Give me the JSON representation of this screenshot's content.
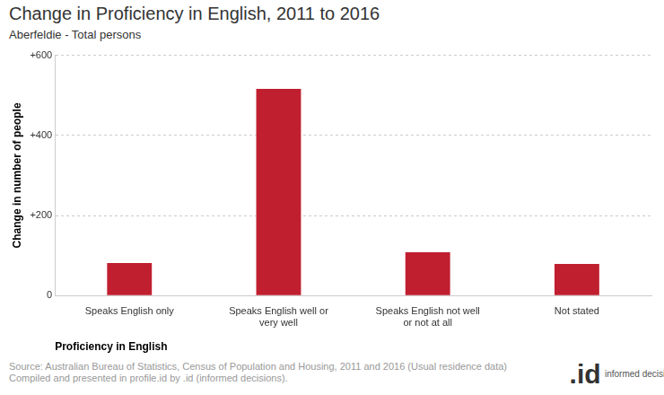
{
  "chart_data": {
    "type": "bar",
    "title": "Change in Proficiency in English, 2011 to 2016",
    "subtitle": "Aberfeldie - Total persons",
    "x_label": "Proficiency in English",
    "y_label": "Change in number of people",
    "categories": [
      "Speaks English only",
      "Speaks English well or very well",
      "Speaks English not well or not at all",
      "Not stated"
    ],
    "values": [
      81,
      516,
      108,
      79
    ],
    "color": "#c01f2f",
    "ylim": [
      0,
      600
    ],
    "yticks": [
      0,
      {
        "value": 200,
        "label": "+200"
      },
      {
        "value": 400,
        "label": "+400"
      },
      {
        "value": 600,
        "label": "+600"
      }
    ],
    "grid": true,
    "source_lines": [
      "Source: Australian Bureau of Statistics, Census of Population and Housing, 2011 and 2016 (Usual residence data)",
      "Compiled and presented in profile.id by .id (informed decisions)."
    ],
    "logo": {
      "mark": ".id",
      "text": "informed decisions"
    }
  }
}
